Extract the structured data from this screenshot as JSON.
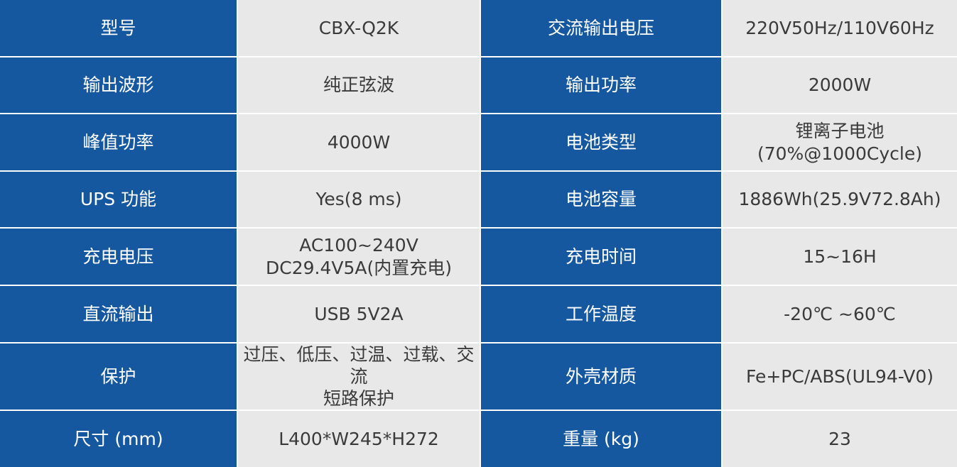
{
  "colors": {
    "label_bg": "#1558a0",
    "value_bg": "#e8e8e8",
    "text": "#3a3a3a"
  },
  "rows": [
    {
      "l1": "型号",
      "v1": "CBX-Q2K",
      "l2": "交流输出电压",
      "v2": "220V50Hz/110V60Hz"
    },
    {
      "l1": "输出波形",
      "v1": "纯正弦波",
      "l2": "输出功率",
      "v2": "2000W"
    },
    {
      "l1": "峰值功率",
      "v1": "4000W",
      "l2": "电池类型",
      "v2": "锂离子电池\n(70%@1000Cycle)"
    },
    {
      "l1": "UPS 功能",
      "v1": "Yes(8 ms)",
      "l2": "电池容量",
      "v2": "1886Wh(25.9V72.8Ah)"
    },
    {
      "l1": "充电电压",
      "v1": "AC100~240V\nDC29.4V5A(内置充电)",
      "l2": "充电时间",
      "v2": "15~16H"
    },
    {
      "l1": "直流输出",
      "v1": "USB 5V2A",
      "l2": "工作温度",
      "v2": "-20℃ ~60℃"
    },
    {
      "l1": "保护",
      "v1": "过压、低压、过温、过载、交 流\n短路保护",
      "l2": "外壳材质",
      "v2": "Fe+PC/ABS(UL94-V0)"
    },
    {
      "l1": "尺寸 (mm)",
      "v1": "L400*W245*H272",
      "l2": "重量 (kg)",
      "v2": "23"
    }
  ]
}
